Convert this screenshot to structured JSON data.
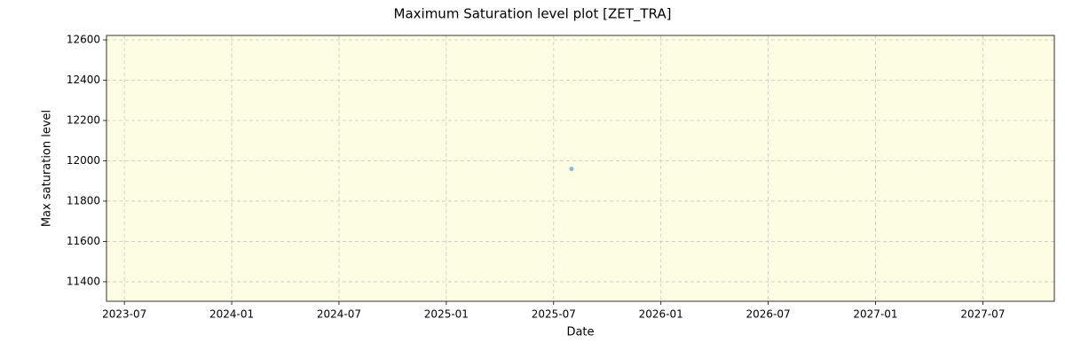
{
  "chart_data": {
    "type": "scatter",
    "title": "Maximum Saturation level plot [ZET_TRA]",
    "xlabel": "Date",
    "ylabel": "Max saturation level",
    "x": [
      "2025-08"
    ],
    "series": [
      {
        "color": "#5b9bd5",
        "values": [
          11960
        ]
      }
    ],
    "xlim": [
      "2023-06",
      "2027-11"
    ],
    "xticks": [
      "2023-07",
      "2024-01",
      "2024-07",
      "2025-01",
      "2025-07",
      "2026-01",
      "2026-07",
      "2027-01",
      "2027-07"
    ],
    "ylim": [
      11303,
      12622
    ],
    "yticks": [
      11400,
      11600,
      11800,
      12000,
      12200,
      12400,
      12600
    ],
    "grid": true,
    "background": "#fdfde3"
  }
}
